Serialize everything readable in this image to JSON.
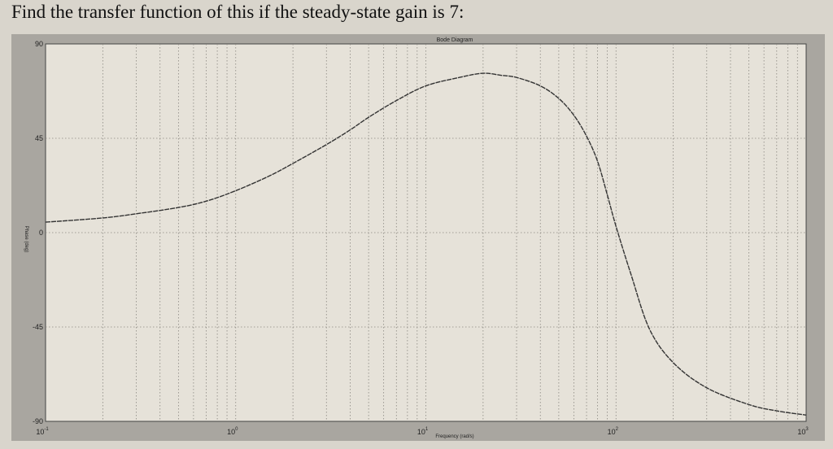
{
  "question": "Find the transfer function of this if the steady-state gain is 7:",
  "chart_data": {
    "type": "line",
    "title": "Bode Diagram",
    "xlabel": "Frequency (rad/s)",
    "ylabel": "Phase (deg)",
    "xscale": "log",
    "xlim": [
      0.1,
      1000
    ],
    "ylim": [
      -90,
      90
    ],
    "grid": true,
    "yticks": [
      90,
      45,
      0,
      -45,
      -90
    ],
    "ytick_labels": [
      "90",
      "45",
      "0",
      "-45",
      "-90"
    ],
    "xticks": [
      0.1,
      1,
      10,
      100,
      1000
    ],
    "xtick_labels": [
      "10^-1",
      "10^0",
      "10^1",
      "10^2",
      "10^3"
    ],
    "series": [
      {
        "name": "Phase",
        "x": [
          0.1,
          0.2,
          0.3,
          0.5,
          0.7,
          1,
          1.5,
          2,
          3,
          4,
          5,
          7,
          10,
          15,
          20,
          25,
          30,
          40,
          50,
          60,
          70,
          80,
          90,
          100,
          120,
          150,
          200,
          300,
          500,
          700,
          1000
        ],
        "y": [
          5,
          7,
          9,
          12,
          15,
          20,
          27,
          33,
          42,
          49,
          55,
          63,
          70,
          74,
          76,
          75,
          74,
          70,
          64,
          56,
          46,
          34,
          18,
          3,
          -20,
          -46,
          -62,
          -74,
          -82,
          -85,
          -87
        ]
      }
    ]
  }
}
